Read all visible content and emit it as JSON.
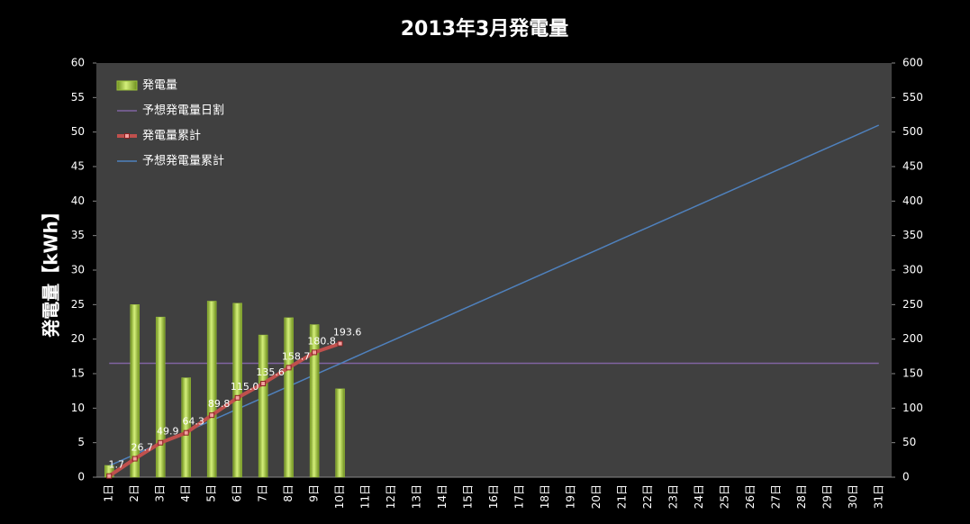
{
  "chart_data": {
    "type": "combo",
    "title": "2013年3月発電量",
    "ylabel": "発電量【kWh】",
    "categories": [
      "1日",
      "2日",
      "3日",
      "4日",
      "5日",
      "6日",
      "7日",
      "8日",
      "9日",
      "10日",
      "11日",
      "12日",
      "13日",
      "14日",
      "15日",
      "16日",
      "17日",
      "18日",
      "19日",
      "20日",
      "21日",
      "22日",
      "23日",
      "24日",
      "25日",
      "26日",
      "27日",
      "28日",
      "29日",
      "30日",
      "31日"
    ],
    "ylim": [
      0,
      60
    ],
    "yticks": [
      0,
      5,
      10,
      15,
      20,
      25,
      30,
      35,
      40,
      45,
      50,
      55,
      60
    ],
    "y2lim": [
      0,
      600
    ],
    "y2ticks": [
      0,
      50,
      100,
      150,
      200,
      250,
      300,
      350,
      400,
      450,
      500,
      550,
      600
    ],
    "legend": "upper left",
    "series": [
      {
        "name": "発電量",
        "type": "bar",
        "axis": "y",
        "color": "#9bc23c",
        "values": [
          1.7,
          25.0,
          23.2,
          14.4,
          25.5,
          25.2,
          20.6,
          23.1,
          22.1,
          12.8,
          null,
          null,
          null,
          null,
          null,
          null,
          null,
          null,
          null,
          null,
          null,
          null,
          null,
          null,
          null,
          null,
          null,
          null,
          null,
          null,
          null
        ]
      },
      {
        "name": "予想発電量日割",
        "type": "line",
        "axis": "y",
        "color": "#8064a2",
        "values": [
          16.5,
          16.5,
          16.5,
          16.5,
          16.5,
          16.5,
          16.5,
          16.5,
          16.5,
          16.5,
          16.5,
          16.5,
          16.5,
          16.5,
          16.5,
          16.5,
          16.5,
          16.5,
          16.5,
          16.5,
          16.5,
          16.5,
          16.5,
          16.5,
          16.5,
          16.5,
          16.5,
          16.5,
          16.5,
          16.5,
          16.5
        ]
      },
      {
        "name": "発電量累計",
        "type": "line",
        "axis": "y2",
        "color": "#c0504d",
        "markers": true,
        "values": [
          1.7,
          26.7,
          49.9,
          64.3,
          89.8,
          115.0,
          135.6,
          158.7,
          180.8,
          193.6,
          null,
          null,
          null,
          null,
          null,
          null,
          null,
          null,
          null,
          null,
          null,
          null,
          null,
          null,
          null,
          null,
          null,
          null,
          null,
          null,
          null
        ],
        "value_labels": [
          "1.7",
          "26.7",
          "49.9",
          "64.3",
          "89.8",
          "115.0",
          "135.6",
          "158.7",
          "180.8",
          "193.6",
          null,
          null,
          null,
          null,
          null,
          null,
          null,
          null,
          null,
          null,
          null,
          null,
          null,
          null,
          null,
          null,
          null,
          null,
          null,
          null,
          null
        ]
      },
      {
        "name": "予想発電量累計",
        "type": "line",
        "axis": "y2",
        "color": "#4f81bd",
        "values": [
          16.5,
          32.9,
          49.4,
          65.8,
          82.3,
          98.7,
          115.2,
          131.6,
          148.1,
          164.5,
          181.0,
          197.4,
          213.9,
          230.3,
          246.8,
          263.2,
          279.7,
          296.1,
          312.6,
          329.0,
          345.5,
          361.9,
          378.4,
          394.8,
          411.3,
          427.7,
          444.2,
          460.6,
          477.1,
          493.5,
          510.0
        ]
      }
    ]
  }
}
